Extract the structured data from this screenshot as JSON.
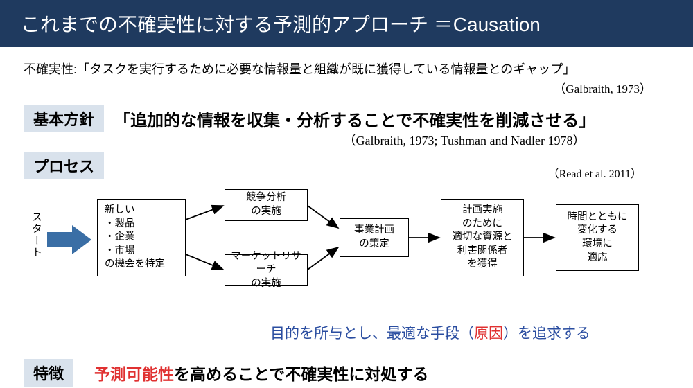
{
  "colors": {
    "title_bg": "#1f3a5f",
    "title_fg": "#ffffff",
    "label_bg": "#d9e2ec",
    "arrow_blue": "#3a6ea5",
    "summary_blue": "#2a4da0",
    "red": "#e03131",
    "black": "#000000"
  },
  "title": "これまでの不確実性に対する予測的アプローチ ＝Causation",
  "definition": "不確実性:「タスクを実行するために必要な情報量と組織が既に獲得している情報量とのギャップ」",
  "definition_cite": "（Galbraith, 1973）",
  "labels": {
    "policy": "基本方針",
    "process": "プロセス",
    "char": "特徴"
  },
  "policy_text": "「追加的な情報を収集・分析することで不確実性を削減させる」",
  "policy_cite": "（Galbraith, 1973; Tushman and Nadler 1978）",
  "process_cite": "（Read et al. 2011）",
  "flow": {
    "start": "スタート",
    "box1": "新しい\n・製品\n・企業\n・市場\nの機会を特定",
    "box2a": "競争分析\nの実施",
    "box2b": "マーケットリサーチ\nの実施",
    "box3": "事業計画\nの策定",
    "box4": "計画実施\nのために\n適切な資源と\n利害関係者\nを獲得",
    "box5": "時間とともに\n変化する\n環境に\n適応"
  },
  "summary_pre": "目的を所与とし、最適な手段（",
  "summary_cause": "原因",
  "summary_post": "）を追求する",
  "char_red": "予測可能性",
  "char_rest": "を高めることで不確実性に対処する"
}
